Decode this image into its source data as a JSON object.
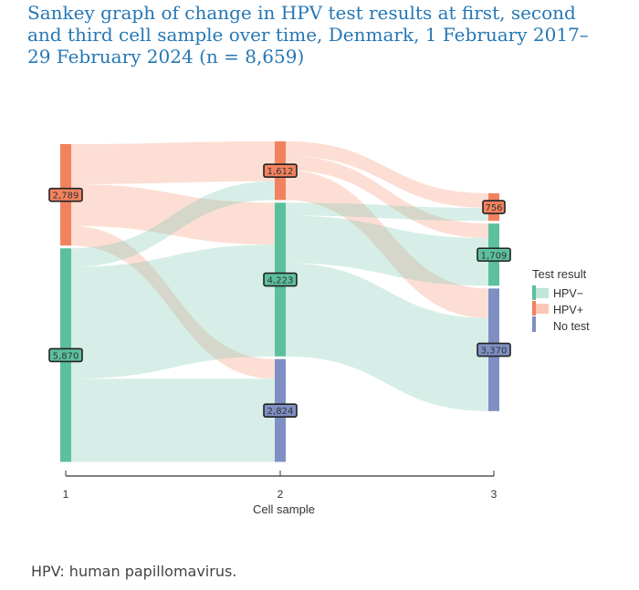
{
  "chart_data": {
    "type": "sankey",
    "title": "Sankey graph of change in HPV test results at first, second and third cell sample over time, Denmark, 1 February 2017–29 February 2024 (n = 8,659)",
    "xlabel": "Cell sample",
    "x_ticks": [
      "1",
      "2",
      "3"
    ],
    "legend": {
      "title": "Test result",
      "position": "right",
      "entries": [
        {
          "name": "HPV−",
          "key": "neg",
          "color": "#5cc09c"
        },
        {
          "name": "HPV+",
          "key": "pos",
          "color": "#f2825f"
        },
        {
          "name": "No test",
          "key": "none",
          "color": "#7f8fc4"
        }
      ]
    },
    "nodes": [
      {
        "id": "s1pos",
        "stage": 1,
        "cat": "pos",
        "value": 2789,
        "label": "2,789"
      },
      {
        "id": "s1neg",
        "stage": 1,
        "cat": "neg",
        "value": 5870,
        "label": "5,870"
      },
      {
        "id": "s2pos",
        "stage": 2,
        "cat": "pos",
        "value": 1612,
        "label": "1,612"
      },
      {
        "id": "s2neg",
        "stage": 2,
        "cat": "neg",
        "value": 4223,
        "label": "4,223"
      },
      {
        "id": "s2none",
        "stage": 2,
        "cat": "none",
        "value": 2824,
        "label": "2,824"
      },
      {
        "id": "s3pos",
        "stage": 3,
        "cat": "pos",
        "value": 756,
        "label": "756"
      },
      {
        "id": "s3neg",
        "stage": 3,
        "cat": "neg",
        "value": 1709,
        "label": "1,709"
      },
      {
        "id": "s3none",
        "stage": 3,
        "cat": "none",
        "value": 3370,
        "label": "3,370"
      }
    ],
    "links": [
      {
        "source": "s1pos",
        "target": "s2pos",
        "value": 1100
      },
      {
        "source": "s1pos",
        "target": "s2neg",
        "value": 1150
      },
      {
        "source": "s1pos",
        "target": "s2none",
        "value": 539
      },
      {
        "source": "s1neg",
        "target": "s2pos",
        "value": 512
      },
      {
        "source": "s1neg",
        "target": "s2neg",
        "value": 3073
      },
      {
        "source": "s1neg",
        "target": "s2none",
        "value": 2285
      },
      {
        "source": "s2pos",
        "target": "s3pos",
        "value": 400
      },
      {
        "source": "s2pos",
        "target": "s3neg",
        "value": 400
      },
      {
        "source": "s2pos",
        "target": "s3none",
        "value": 812
      },
      {
        "source": "s2neg",
        "target": "s3pos",
        "value": 356
      },
      {
        "source": "s2neg",
        "target": "s3neg",
        "value": 1309
      },
      {
        "source": "s2neg",
        "target": "s3none",
        "value": 2558
      }
    ]
  },
  "footnote": "HPV: human papillomavirus."
}
